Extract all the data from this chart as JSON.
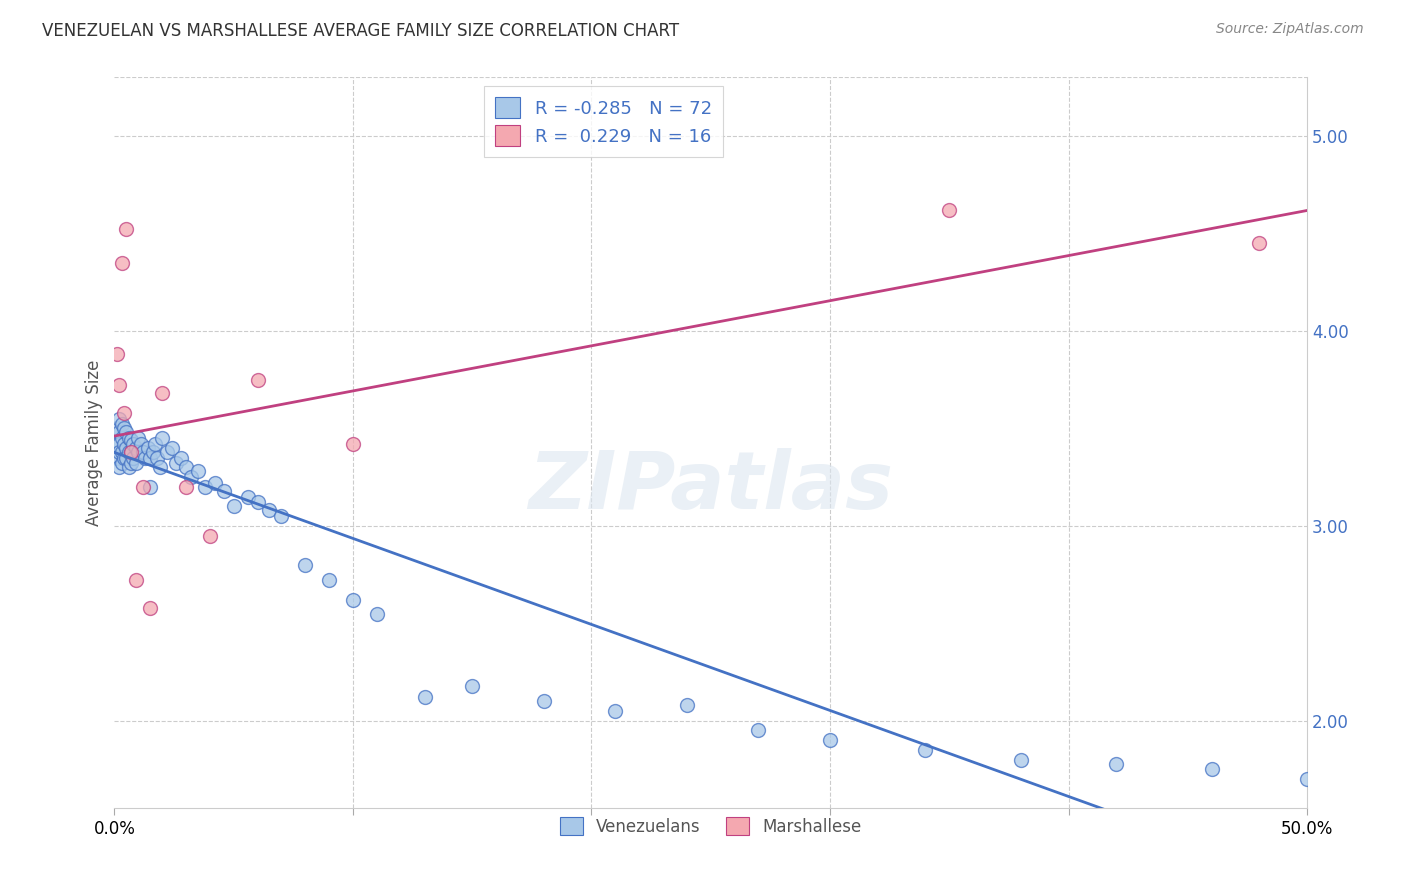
{
  "title": "VENEZUELAN VS MARSHALLESE AVERAGE FAMILY SIZE CORRELATION CHART",
  "source": "Source: ZipAtlas.com",
  "ylabel": "Average Family Size",
  "yticks": [
    2.0,
    3.0,
    4.0,
    5.0
  ],
  "xlim": [
    0.0,
    0.5
  ],
  "ylim": [
    1.55,
    5.3
  ],
  "blue_scatter": "#a8c8e8",
  "pink_scatter": "#f4a8b0",
  "blue_line": "#4472c4",
  "pink_line": "#c04080",
  "grid_color": "#cccccc",
  "watermark": "ZIPatlas",
  "venezuelan_x": [
    0.001,
    0.001,
    0.001,
    0.002,
    0.002,
    0.002,
    0.002,
    0.002,
    0.003,
    0.003,
    0.003,
    0.003,
    0.004,
    0.004,
    0.004,
    0.005,
    0.005,
    0.005,
    0.006,
    0.006,
    0.006,
    0.007,
    0.007,
    0.007,
    0.008,
    0.008,
    0.009,
    0.009,
    0.01,
    0.01,
    0.011,
    0.012,
    0.013,
    0.014,
    0.015,
    0.015,
    0.016,
    0.017,
    0.018,
    0.019,
    0.02,
    0.022,
    0.024,
    0.026,
    0.028,
    0.03,
    0.032,
    0.035,
    0.038,
    0.042,
    0.046,
    0.05,
    0.056,
    0.06,
    0.065,
    0.07,
    0.08,
    0.09,
    0.1,
    0.11,
    0.13,
    0.15,
    0.18,
    0.21,
    0.24,
    0.27,
    0.3,
    0.34,
    0.38,
    0.42,
    0.46,
    0.5
  ],
  "venezuelan_y": [
    3.5,
    3.42,
    3.35,
    3.55,
    3.48,
    3.42,
    3.38,
    3.3,
    3.52,
    3.45,
    3.38,
    3.32,
    3.5,
    3.42,
    3.35,
    3.48,
    3.4,
    3.35,
    3.45,
    3.38,
    3.3,
    3.44,
    3.38,
    3.32,
    3.42,
    3.35,
    3.4,
    3.32,
    3.38,
    3.45,
    3.42,
    3.38,
    3.35,
    3.4,
    3.35,
    3.2,
    3.38,
    3.42,
    3.35,
    3.3,
    3.45,
    3.38,
    3.4,
    3.32,
    3.35,
    3.3,
    3.25,
    3.28,
    3.2,
    3.22,
    3.18,
    3.1,
    3.15,
    3.12,
    3.08,
    3.05,
    2.8,
    2.72,
    2.62,
    2.55,
    2.12,
    2.18,
    2.1,
    2.05,
    2.08,
    1.95,
    1.9,
    1.85,
    1.8,
    1.78,
    1.75,
    1.7
  ],
  "marshallese_x": [
    0.001,
    0.002,
    0.003,
    0.004,
    0.005,
    0.007,
    0.009,
    0.012,
    0.015,
    0.02,
    0.03,
    0.04,
    0.06,
    0.1,
    0.35,
    0.48
  ],
  "marshallese_y": [
    3.88,
    3.72,
    4.35,
    3.58,
    4.52,
    3.38,
    2.72,
    3.2,
    2.58,
    3.68,
    3.2,
    2.95,
    3.75,
    3.42,
    4.62,
    4.45
  ]
}
